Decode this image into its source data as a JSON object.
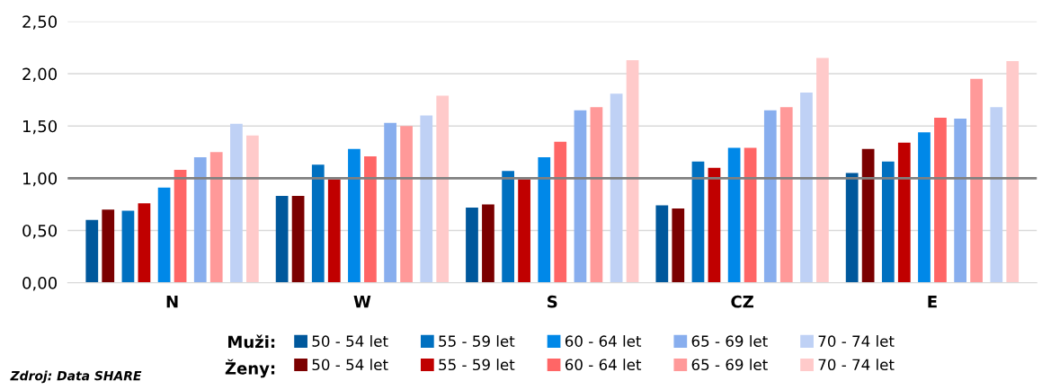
{
  "chart_data": {
    "type": "bar",
    "categories": [
      "N",
      "W",
      "S",
      "CZ",
      "E"
    ],
    "series": [
      {
        "name": "50 - 54 let",
        "color": "#00589c",
        "values": [
          0.6,
          0.83,
          0.72,
          0.74,
          1.05
        ]
      },
      {
        "name": "50 - 54 let",
        "color": "#7b0000",
        "values": [
          0.7,
          0.83,
          0.75,
          0.71,
          1.28
        ]
      },
      {
        "name": "55 - 59 let",
        "color": "#0070c0",
        "values": [
          0.69,
          1.13,
          1.07,
          1.16,
          1.16
        ]
      },
      {
        "name": "55 - 59 let",
        "color": "#c00000",
        "values": [
          0.76,
          0.99,
          0.99,
          1.1,
          1.34
        ]
      },
      {
        "name": "60 - 64 let",
        "color": "#0088e8",
        "values": [
          0.91,
          1.28,
          1.2,
          1.29,
          1.44
        ]
      },
      {
        "name": "60 - 64 let",
        "color": "#ff6666",
        "values": [
          1.08,
          1.21,
          1.35,
          1.29,
          1.58
        ]
      },
      {
        "name": "65 - 69 let",
        "color": "#88aeee",
        "values": [
          1.2,
          1.53,
          1.65,
          1.65,
          1.57
        ]
      },
      {
        "name": "65 - 69 let",
        "color": "#ff9999",
        "values": [
          1.25,
          1.5,
          1.68,
          1.68,
          1.95
        ]
      },
      {
        "name": "70 - 74 let",
        "color": "#bfd1f5",
        "values": [
          1.52,
          1.6,
          1.81,
          1.82,
          1.68
        ]
      },
      {
        "name": "70 - 74 let",
        "color": "#ffcaca",
        "values": [
          1.41,
          1.79,
          2.13,
          2.15,
          2.12
        ]
      }
    ],
    "ylim": [
      0,
      2.5
    ],
    "yticks": [
      {
        "value": 0,
        "label": "0,00"
      },
      {
        "value": 0.5,
        "label": "0,50"
      },
      {
        "value": 1,
        "label": "1,00"
      },
      {
        "value": 1.5,
        "label": "1,50"
      },
      {
        "value": 2,
        "label": "2,00"
      },
      {
        "value": 2.5,
        "label": "2,50"
      }
    ],
    "grid": "y",
    "legend": "bottom",
    "ref_lines": [
      {
        "axis": "y",
        "value": 1,
        "color": "#808080"
      }
    ],
    "annotations": [
      "Muži:",
      "Ženy:",
      "Zdroj: Data SHARE"
    ]
  }
}
